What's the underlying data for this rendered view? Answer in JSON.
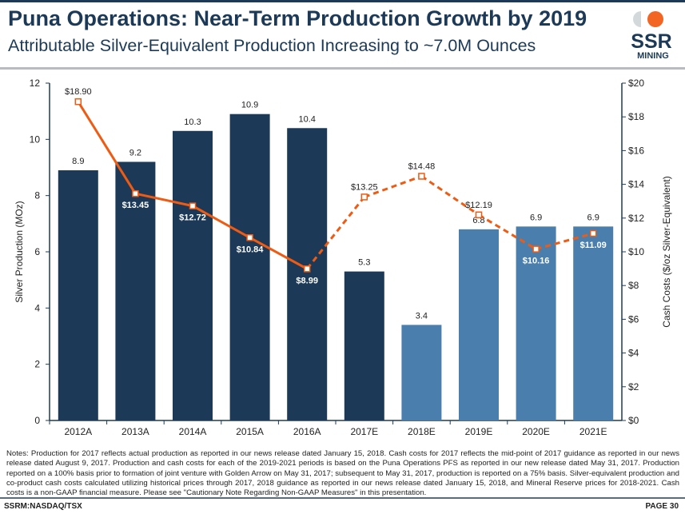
{
  "header": {
    "title": "Puna Operations: Near-Term Production Growth by 2019",
    "subtitle": "Attributable Silver-Equivalent Production Increasing to ~7.0M Ounces"
  },
  "logo": {
    "line1": "SSR",
    "line2": "MINING",
    "colors": {
      "grey": "#d3d8da",
      "orange": "#f26522",
      "navy": "#1c3a57"
    }
  },
  "chart_data": {
    "type": "bar",
    "categories": [
      "2012A",
      "2013A",
      "2014A",
      "2015A",
      "2016A",
      "2017E",
      "2018E",
      "2019E",
      "2020E",
      "2021E"
    ],
    "series": [
      {
        "type": "bar",
        "axis": "left",
        "values": [
          8.9,
          9.2,
          10.3,
          10.9,
          10.4,
          5.3,
          3.4,
          6.8,
          6.9,
          6.9
        ],
        "labels": [
          "8.9",
          "9.2",
          "10.3",
          "10.9",
          "10.4",
          "5.3",
          "3.4",
          "6.8",
          "6.9",
          "6.9"
        ],
        "colors": [
          "#1c3a57",
          "#1c3a57",
          "#1c3a57",
          "#1c3a57",
          "#1c3a57",
          "#1c3a57",
          "#4a7fad",
          "#4a7fad",
          "#4a7fad",
          "#4a7fad"
        ]
      },
      {
        "type": "line",
        "axis": "right",
        "values": [
          18.9,
          13.45,
          12.72,
          10.84,
          8.99,
          13.25,
          14.48,
          12.19,
          10.16,
          11.09
        ],
        "labels": [
          "$18.90",
          "$13.45",
          "$12.72",
          "$10.84",
          "$8.99",
          "$13.25",
          "$14.48",
          "$12.19",
          "$10.16",
          "$11.09"
        ],
        "color": "#ef5b12",
        "solid_through": "2016A",
        "dashed_after": "2016A"
      }
    ],
    "ylabel": "Silver Production (MOz)",
    "y2label": "Cash Costs ($/oz Silver-Equivalent)",
    "ylim": [
      0,
      12
    ],
    "y2lim": [
      0,
      20
    ],
    "yticks": [
      "0",
      "2",
      "4",
      "6",
      "8",
      "10",
      "12"
    ],
    "y2ticks": [
      "$0",
      "$2",
      "$4",
      "$6",
      "$8",
      "$10",
      "$12",
      "$14",
      "$16",
      "$18",
      "$20"
    ],
    "grid": false
  },
  "notes": "Notes: Production for 2017 reflects actual production as reported in our news release dated January 15, 2018.  Cash costs for 2017 reflects the mid-point of 2017 guidance as reported in our news release dated August 9, 2017. Production and cash costs for each of the 2019-2021 periods is based on the Puna Operations PFS as reported in our new release dated May 31, 2017. Production reported on a 100% basis prior to formation of joint venture with Golden Arrow on May 31, 2017; subsequent to May 31, 2017, production is reported on a 75% basis. Silver-equivalent production and co-product cash costs calculated utilizing historical prices through 2017, 2018 guidance as reported in our news release dated January 15, 2018, and Mineral Reserve prices for 2018-2021. Cash costs is a non-GAAP financial measure. Please see \"Cautionary Note Regarding Non-GAAP Measures\" in this presentation.",
  "footer": {
    "ticker": "SSRM:NASDAQ/TSX",
    "page": "PAGE 30"
  }
}
